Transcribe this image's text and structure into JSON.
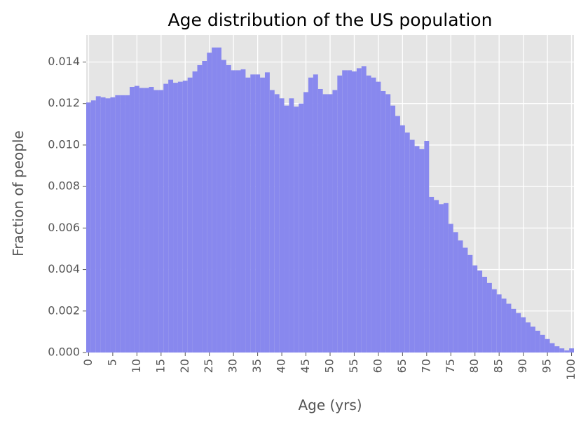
{
  "chart_data": {
    "type": "bar",
    "title": "Age distribution of the US population",
    "xlabel": "Age (yrs)",
    "ylabel": "Fraction of people",
    "xlim": [
      -0.5,
      100.5
    ],
    "ylim": [
      0,
      0.0153
    ],
    "grid": true,
    "x_ticks": [
      "0",
      "5",
      "10",
      "15",
      "20",
      "25",
      "30",
      "35",
      "40",
      "45",
      "50",
      "55",
      "60",
      "65",
      "70",
      "75",
      "80",
      "85",
      "90",
      "95",
      "100"
    ],
    "y_ticks": [
      "0.000",
      "0.002",
      "0.004",
      "0.006",
      "0.008",
      "0.010",
      "0.012",
      "0.014"
    ],
    "bar_color": "#8888ee",
    "background_color": "#e5e5e5",
    "series": [
      {
        "x": [
          0,
          1,
          2,
          3,
          4,
          5,
          6,
          7,
          8,
          9,
          10,
          11,
          12,
          13,
          14,
          15,
          16,
          17,
          18,
          19,
          20,
          21,
          22,
          23,
          24,
          25,
          26,
          27,
          28,
          29,
          30,
          31,
          32,
          33,
          34,
          35,
          36,
          37,
          38,
          39,
          40,
          41,
          42,
          43,
          44,
          45,
          46,
          47,
          48,
          49,
          50,
          51,
          52,
          53,
          54,
          55,
          56,
          57,
          58,
          59,
          60,
          61,
          62,
          63,
          64,
          65,
          66,
          67,
          68,
          69,
          70,
          71,
          72,
          73,
          74,
          75,
          76,
          77,
          78,
          79,
          80,
          81,
          82,
          83,
          84,
          85,
          86,
          87,
          88,
          89,
          90,
          91,
          92,
          93,
          94,
          95,
          96,
          97,
          98,
          99,
          100
        ],
        "values": [
          0.01205,
          0.01215,
          0.01235,
          0.0123,
          0.01225,
          0.0123,
          0.0124,
          0.0124,
          0.0124,
          0.0128,
          0.01285,
          0.01275,
          0.01275,
          0.0128,
          0.01265,
          0.01265,
          0.01295,
          0.01315,
          0.013,
          0.01305,
          0.0131,
          0.01325,
          0.01355,
          0.01385,
          0.01405,
          0.01445,
          0.0147,
          0.0147,
          0.0141,
          0.01385,
          0.0136,
          0.0136,
          0.01365,
          0.01325,
          0.0134,
          0.0134,
          0.01325,
          0.0135,
          0.01265,
          0.01245,
          0.01225,
          0.0119,
          0.01225,
          0.01185,
          0.012,
          0.01255,
          0.01325,
          0.0134,
          0.0127,
          0.01245,
          0.01245,
          0.01265,
          0.01335,
          0.0136,
          0.0136,
          0.01355,
          0.0137,
          0.0138,
          0.01335,
          0.01325,
          0.01305,
          0.0126,
          0.01245,
          0.0119,
          0.0114,
          0.01095,
          0.0106,
          0.01025,
          0.00995,
          0.0098,
          0.0102,
          0.0075,
          0.00735,
          0.00715,
          0.0072,
          0.0062,
          0.0058,
          0.0054,
          0.00505,
          0.0047,
          0.0042,
          0.00395,
          0.00365,
          0.00335,
          0.00305,
          0.0028,
          0.0026,
          0.00235,
          0.0021,
          0.0019,
          0.0017,
          0.00145,
          0.00125,
          0.00105,
          0.00085,
          0.00065,
          0.00045,
          0.0003,
          0.0002,
          0.0001,
          0.0002
        ]
      }
    ]
  }
}
